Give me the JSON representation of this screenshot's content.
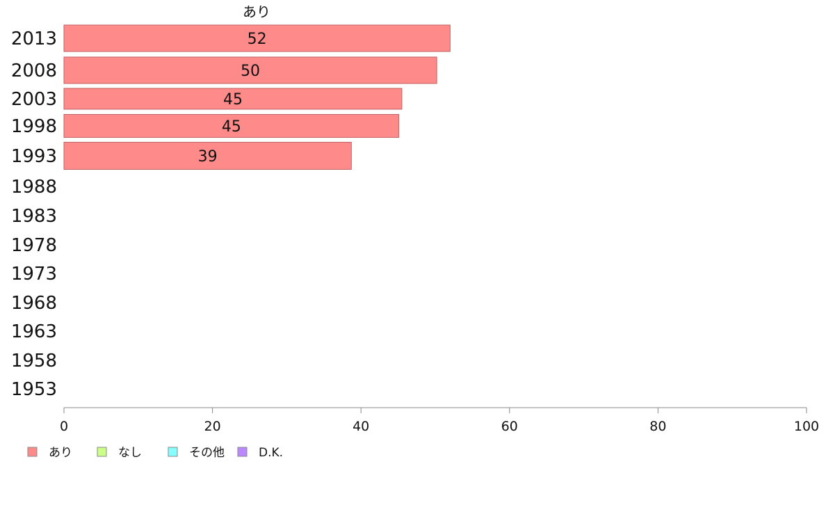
{
  "chart_data": {
    "type": "bar",
    "orientation": "horizontal",
    "series_title": "あり",
    "categories": [
      "2013",
      "2008",
      "2003",
      "1998",
      "1993",
      "1988",
      "1983",
      "1978",
      "1973",
      "1968",
      "1963",
      "1958",
      "1953"
    ],
    "series": [
      {
        "name": "あり",
        "color": "#ff8a8a",
        "values": [
          52,
          50.2,
          45.5,
          45.1,
          38.7,
          null,
          null,
          null,
          null,
          null,
          null,
          null,
          null
        ],
        "labels": [
          "52",
          "50",
          "45",
          "45",
          "39",
          "",
          "",
          "",
          "",
          "",
          "",
          "",
          ""
        ]
      }
    ],
    "xlim": [
      0,
      100
    ],
    "xticks": [
      0,
      20,
      40,
      60,
      80,
      100
    ],
    "legend_position": "bottom-left",
    "legend": [
      {
        "label": "あり",
        "color": "#ff8a8a"
      },
      {
        "label": "なし",
        "color": "#ccff88"
      },
      {
        "label": "その他",
        "color": "#88ffff"
      },
      {
        "label": "D.K.",
        "color": "#bb88ff"
      }
    ]
  }
}
